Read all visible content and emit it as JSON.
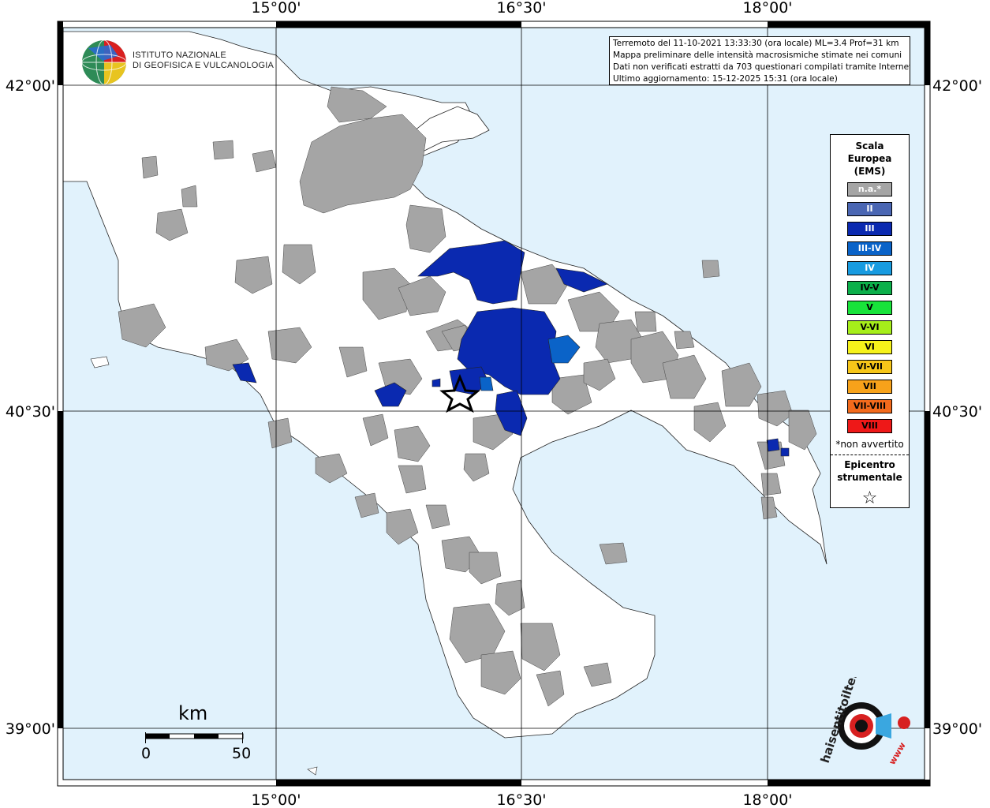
{
  "map": {
    "lon_labels": [
      "15°00'",
      "16°30'",
      "18°00'"
    ],
    "lat_labels": [
      "42°00'",
      "40°30'",
      "39°00'"
    ],
    "colors": {
      "sea": "#e1f2fc",
      "land": "#ffffff",
      "not_felt": "#a5a5a5",
      "II": "#4a66b3",
      "III": "#0a29b0",
      "III-IV": "#0a63c8",
      "IV": "#189be0"
    }
  },
  "info": {
    "line1": "Terremoto del 11-10-2021 13:33:30 (ora locale) ML=3.4 Prof=31 km",
    "line2": "Mappa preliminare delle intensità macrosismiche stimate nei comuni",
    "line3": "Dati non verificati estratti da 703 questionari compilati tramite Internet.",
    "line4": "Ultimo aggiornamento: 15-12-2025 15:31 (ora locale)"
  },
  "logo": {
    "line1": "ISTITUTO NAZIONALE",
    "line2": "DI GEOFISICA E VULCANOLOGIA"
  },
  "legend": {
    "title1": "Scala",
    "title2": "Europea",
    "title3": "(EMS)",
    "items": [
      {
        "label": "n.a.*",
        "color": "#a5a5a5",
        "text_color": "#ffffff"
      },
      {
        "label": "II",
        "color": "#4a66b3",
        "text_color": "#ffffff"
      },
      {
        "label": "III",
        "color": "#0a29b0",
        "text_color": "#ffffff"
      },
      {
        "label": "III-IV",
        "color": "#0a63c8",
        "text_color": "#ffffff"
      },
      {
        "label": "IV",
        "color": "#189be0",
        "text_color": "#ffffff"
      },
      {
        "label": "IV-V",
        "color": "#0bb04a",
        "text_color": "#000000"
      },
      {
        "label": "V",
        "color": "#18e33a",
        "text_color": "#000000"
      },
      {
        "label": "V-VI",
        "color": "#a6ee1a",
        "text_color": "#000000"
      },
      {
        "label": "VI",
        "color": "#f6f21a",
        "text_color": "#000000"
      },
      {
        "label": "VI-VII",
        "color": "#f7c619",
        "text_color": "#000000"
      },
      {
        "label": "VII",
        "color": "#f7a21a",
        "text_color": "#000000"
      },
      {
        "label": "VII-VIII",
        "color": "#f26a1c",
        "text_color": "#000000"
      },
      {
        "label": "VIII",
        "color": "#ee1818",
        "text_color": "#000000"
      }
    ],
    "note": "*non avvertito",
    "epicenter1": "Epicentro",
    "epicenter2": "strumentale",
    "epicenter_symbol": "☆"
  },
  "scale_bar": {
    "unit": "km",
    "min": "0",
    "max": "50"
  },
  "badge": {
    "text_main": "haisentitoilterremoto.it",
    "text_sub": "www"
  }
}
